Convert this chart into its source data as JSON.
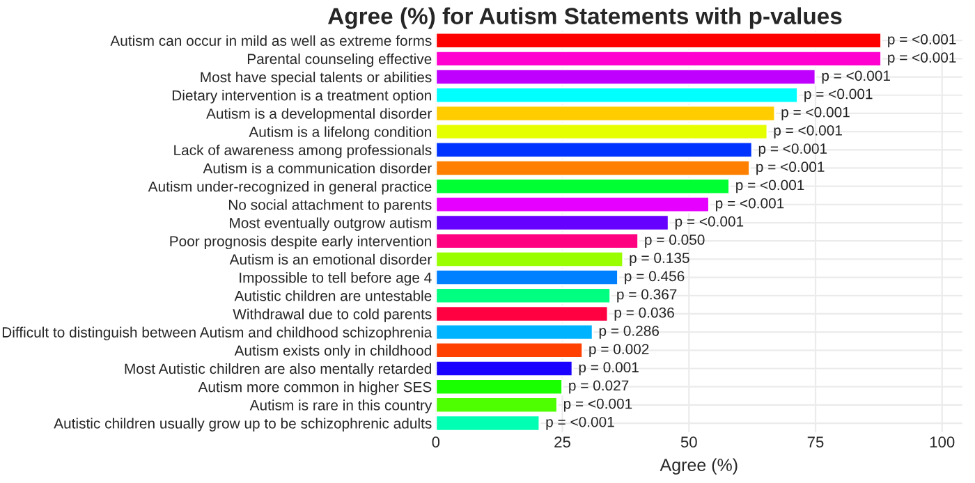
{
  "chart_data": {
    "type": "bar",
    "orientation": "horizontal",
    "title": "Agree (%) for Autism Statements with p-values",
    "xlabel": "Agree (%)",
    "categories": [
      "Autism can occur in mild as well as extreme forms",
      "Parental counseling effective",
      "Most have special talents or abilities",
      "Dietary intervention is a treatment option",
      "Autism is a developmental disorder",
      "Autism is a lifelong condition",
      "Lack of awareness among professionals",
      "Autism is a communication disorder",
      "Autism under-recognized in general practice",
      "No social attachment to parents",
      "Most eventually outgrow autism",
      "Poor prognosis despite early intervention",
      "Autism is an emotional disorder",
      "Impossible to tell before age 4",
      "Autistic children are untestable",
      "Withdrawal due to cold parents",
      "Difficult to distinguish between Autism and childhood schizophrenia",
      "Autism exists only in childhood",
      "Most Autistic children are also mentally retarded",
      "Autism more common in higher SES",
      "Autism is rare in this country",
      "Autistic children usually grow up to be schizophrenic adults"
    ],
    "values": [
      88,
      88,
      75,
      71.5,
      67,
      65.5,
      62.5,
      62,
      58,
      54,
      46,
      40,
      37,
      36,
      34.5,
      34,
      31,
      29,
      27,
      25,
      24,
      20.5
    ],
    "annotations": [
      {
        "text": "p = <0.001",
        "x": 88,
        "y": "Autism can occur in mild as well as extreme forms"
      },
      {
        "text": "p = <0.001",
        "x": 88,
        "y": "Parental counseling effective"
      },
      {
        "text": "p = <0.001",
        "x": 75,
        "y": "Most have special talents or abilities"
      },
      {
        "text": "p = <0.001",
        "x": 71.5,
        "y": "Dietary intervention is a treatment option"
      },
      {
        "text": "p = <0.001",
        "x": 67,
        "y": "Autism is a developmental disorder"
      },
      {
        "text": "p = <0.001",
        "x": 65.5,
        "y": "Autism is a lifelong condition"
      },
      {
        "text": "p = <0.001",
        "x": 62.5,
        "y": "Lack of awareness among professionals"
      },
      {
        "text": "p = <0.001",
        "x": 62,
        "y": "Autism is a communication disorder"
      },
      {
        "text": "p = <0.001",
        "x": 58,
        "y": "Autism under-recognized in general practice"
      },
      {
        "text": "p = <0.001",
        "x": 54,
        "y": "No social attachment to parents"
      },
      {
        "text": "p = <0.001",
        "x": 46,
        "y": "Most eventually outgrow autism"
      },
      {
        "text": "p = 0.050",
        "x": 40,
        "y": "Poor prognosis despite early intervention"
      },
      {
        "text": "p = 0.135",
        "x": 37,
        "y": "Autism is an emotional disorder"
      },
      {
        "text": "p = 0.456",
        "x": 36,
        "y": "Impossible to tell before age 4"
      },
      {
        "text": "p = 0.367",
        "x": 34.5,
        "y": "Autistic children are untestable"
      },
      {
        "text": "p = 0.036",
        "x": 34,
        "y": "Withdrawal due to cold parents"
      },
      {
        "text": "p = 0.286",
        "x": 31,
        "y": "Difficult to distinguish between Autism and childhood schizophrenia"
      },
      {
        "text": "p = 0.002",
        "x": 29,
        "y": "Autism exists only in childhood"
      },
      {
        "text": "p = 0.001",
        "x": 27,
        "y": "Most Autistic children are also mentally retarded"
      },
      {
        "text": "p = 0.027",
        "x": 25,
        "y": "Autism more common in higher SES"
      },
      {
        "text": "p = <0.001",
        "x": 24,
        "y": "Autism is rare in this country"
      },
      {
        "text": "p = <0.001",
        "x": 20.5,
        "y": "Autistic children usually grow up to be schizophrenic adults"
      }
    ],
    "colors": [
      "#ff0000",
      "#ff00d0",
      "#c000ff",
      "#00ffff",
      "#ffcc00",
      "#e6ff00",
      "#0033ff",
      "#ff8000",
      "#00ff33",
      "#e600ff",
      "#6600ff",
      "#ff0080",
      "#99ff00",
      "#0080ff",
      "#00ff80",
      "#ff0040",
      "#00b3ff",
      "#ff4000",
      "#1a00ff",
      "#1aff00",
      "#4dff00",
      "#00ffb3"
    ],
    "xlim": [
      0,
      104
    ],
    "xticks": [
      0,
      25,
      50,
      75,
      100
    ],
    "grid": true
  }
}
